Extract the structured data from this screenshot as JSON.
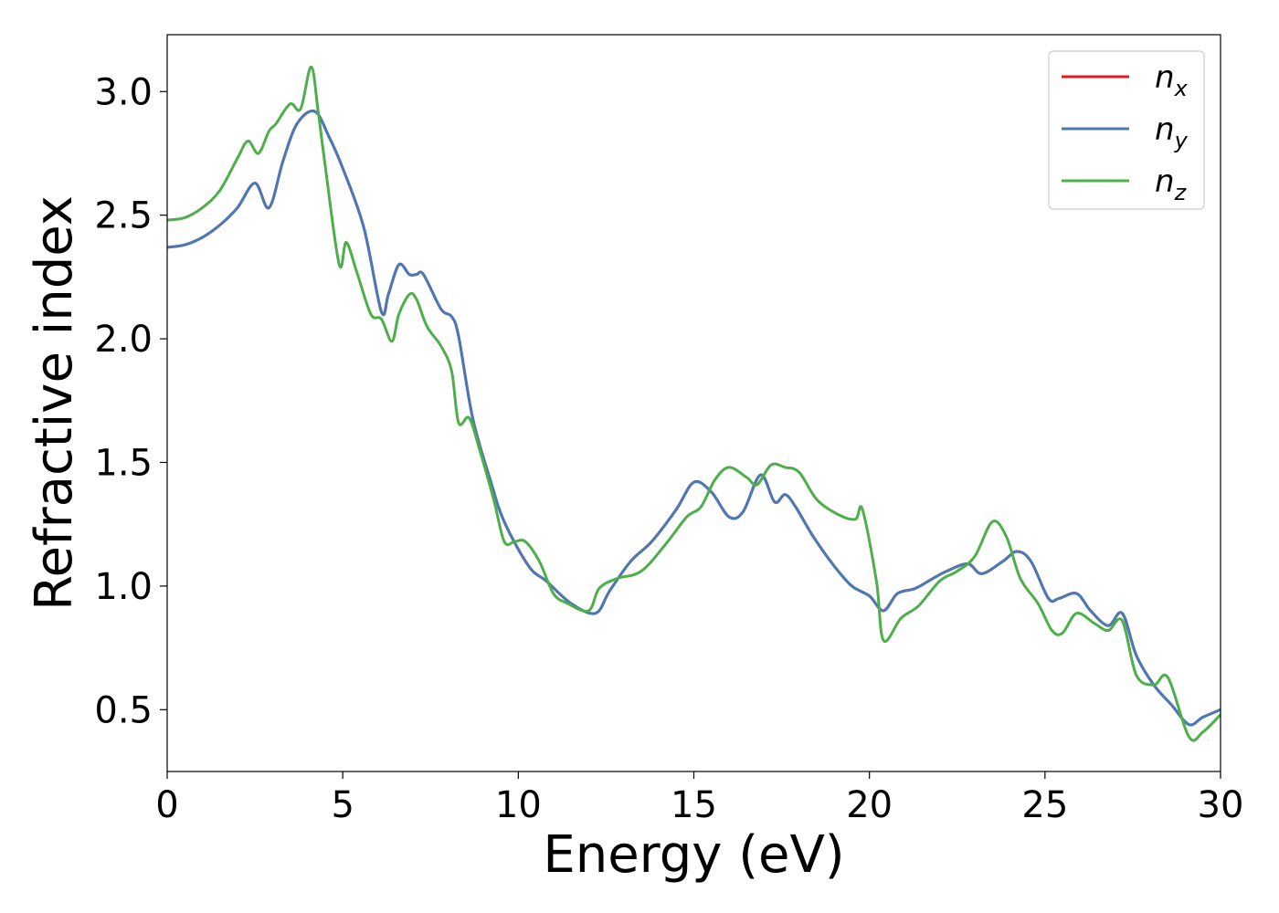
{
  "chart_data": {
    "type": "line",
    "xlabel": "Energy (eV)",
    "ylabel": "Refractive index",
    "xlim": [
      0,
      30
    ],
    "ylim": [
      0.25,
      3.23
    ],
    "xticks": [
      0,
      5,
      10,
      15,
      20,
      25,
      30
    ],
    "yticks": [
      0.5,
      1.0,
      1.5,
      2.0,
      2.5,
      3.0
    ],
    "xtick_labels": [
      "0",
      "5",
      "10",
      "15",
      "20",
      "25",
      "30"
    ],
    "ytick_labels": [
      "0.5",
      "1.0",
      "1.5",
      "2.0",
      "2.5",
      "3.0"
    ],
    "grid": false,
    "legend_position": "top-right",
    "series": [
      {
        "name": "n",
        "subscript": "x",
        "color": "#e41a1c",
        "x": [
          0,
          0.5,
          1,
          1.5,
          2,
          2.5,
          2.9,
          3.3,
          3.7,
          4.2,
          4.6,
          5,
          5.6,
          6.1,
          6.3,
          6.6,
          6.9,
          7.1,
          7.3,
          7.8,
          8.1,
          8.3,
          8.7,
          9.2,
          9.6,
          10.3,
          10.8,
          11.5,
          12.2,
          12.6,
          13.2,
          13.8,
          14.5,
          15,
          15.5,
          16,
          16.4,
          16.9,
          17.3,
          17.6,
          17.9,
          18.4,
          19,
          19.5,
          20,
          20.4,
          20.8,
          21.3,
          21.8,
          22.2,
          22.8,
          23.2,
          23.8,
          24.2,
          24.6,
          25.1,
          25.4,
          25.9,
          26.3,
          26.8,
          27.2,
          27.6,
          28.1,
          28.6,
          29.1,
          29.5,
          30
        ],
        "y": [
          2.37,
          2.38,
          2.41,
          2.46,
          2.53,
          2.63,
          2.53,
          2.72,
          2.87,
          2.92,
          2.82,
          2.69,
          2.45,
          2.11,
          2.18,
          2.3,
          2.26,
          2.26,
          2.26,
          2.12,
          2.09,
          2.01,
          1.68,
          1.43,
          1.26,
          1.08,
          1.02,
          0.93,
          0.89,
          0.98,
          1.1,
          1.18,
          1.31,
          1.42,
          1.38,
          1.28,
          1.3,
          1.45,
          1.34,
          1.37,
          1.32,
          1.2,
          1.08,
          1.0,
          0.96,
          0.9,
          0.97,
          0.99,
          1.03,
          1.06,
          1.09,
          1.05,
          1.1,
          1.14,
          1.1,
          0.95,
          0.95,
          0.97,
          0.9,
          0.84,
          0.89,
          0.72,
          0.6,
          0.52,
          0.44,
          0.47,
          0.5
        ]
      },
      {
        "name": "n",
        "subscript": "y",
        "color": "#4a7ab6",
        "x": [
          0,
          0.5,
          1,
          1.5,
          2,
          2.5,
          2.9,
          3.3,
          3.7,
          4.2,
          4.6,
          5,
          5.6,
          6.1,
          6.3,
          6.6,
          6.9,
          7.1,
          7.3,
          7.8,
          8.1,
          8.3,
          8.7,
          9.2,
          9.6,
          10.3,
          10.8,
          11.5,
          12.2,
          12.6,
          13.2,
          13.8,
          14.5,
          15,
          15.5,
          16,
          16.4,
          16.9,
          17.3,
          17.6,
          17.9,
          18.4,
          19,
          19.5,
          20,
          20.4,
          20.8,
          21.3,
          21.8,
          22.2,
          22.8,
          23.2,
          23.8,
          24.2,
          24.6,
          25.1,
          25.4,
          25.9,
          26.3,
          26.8,
          27.2,
          27.6,
          28.1,
          28.6,
          29.1,
          29.5,
          30
        ],
        "y": [
          2.37,
          2.38,
          2.41,
          2.46,
          2.53,
          2.63,
          2.53,
          2.72,
          2.87,
          2.92,
          2.82,
          2.69,
          2.45,
          2.11,
          2.18,
          2.3,
          2.26,
          2.26,
          2.26,
          2.12,
          2.09,
          2.01,
          1.68,
          1.43,
          1.26,
          1.08,
          1.02,
          0.93,
          0.89,
          0.98,
          1.1,
          1.18,
          1.31,
          1.42,
          1.38,
          1.28,
          1.3,
          1.45,
          1.34,
          1.37,
          1.32,
          1.2,
          1.08,
          1.0,
          0.96,
          0.9,
          0.97,
          0.99,
          1.03,
          1.06,
          1.09,
          1.05,
          1.1,
          1.14,
          1.1,
          0.95,
          0.95,
          0.97,
          0.9,
          0.84,
          0.89,
          0.72,
          0.6,
          0.52,
          0.44,
          0.47,
          0.5
        ]
      },
      {
        "name": "n",
        "subscript": "z",
        "color": "#4daf4a",
        "x": [
          0,
          0.5,
          1,
          1.5,
          2,
          2.3,
          2.6,
          2.9,
          3.1,
          3.5,
          3.8,
          4.1,
          4.3,
          4.5,
          4.9,
          5.1,
          5.4,
          5.8,
          6.1,
          6.4,
          6.6,
          6.9,
          7.1,
          7.4,
          7.8,
          8.1,
          8.3,
          8.6,
          8.9,
          9.3,
          9.6,
          9.9,
          10.2,
          10.6,
          11,
          11.4,
          12,
          12.3,
          12.8,
          13.5,
          14.2,
          14.8,
          15.2,
          15.6,
          16,
          16.5,
          16.8,
          17.2,
          17.6,
          18,
          18.5,
          19.1,
          19.6,
          19.8,
          20.2,
          20.4,
          20.9,
          21.4,
          22,
          22.5,
          23,
          23.5,
          23.9,
          24.3,
          24.8,
          25.2,
          25.5,
          25.9,
          26.4,
          26.8,
          27.2,
          27.6,
          28.1,
          28.5,
          29.1,
          29.5,
          30
        ],
        "y": [
          2.48,
          2.49,
          2.53,
          2.6,
          2.73,
          2.8,
          2.75,
          2.84,
          2.87,
          2.95,
          2.93,
          3.1,
          2.92,
          2.7,
          2.3,
          2.39,
          2.27,
          2.1,
          2.08,
          1.99,
          2.1,
          2.18,
          2.16,
          2.05,
          1.97,
          1.87,
          1.66,
          1.68,
          1.55,
          1.35,
          1.18,
          1.18,
          1.18,
          1.1,
          0.97,
          0.93,
          0.9,
          0.99,
          1.03,
          1.06,
          1.17,
          1.28,
          1.32,
          1.43,
          1.48,
          1.44,
          1.41,
          1.49,
          1.48,
          1.46,
          1.35,
          1.29,
          1.27,
          1.31,
          1.02,
          0.78,
          0.87,
          0.92,
          1.02,
          1.06,
          1.12,
          1.26,
          1.2,
          1.03,
          0.93,
          0.82,
          0.81,
          0.89,
          0.85,
          0.82,
          0.86,
          0.64,
          0.6,
          0.63,
          0.39,
          0.41,
          0.48
        ]
      }
    ]
  }
}
